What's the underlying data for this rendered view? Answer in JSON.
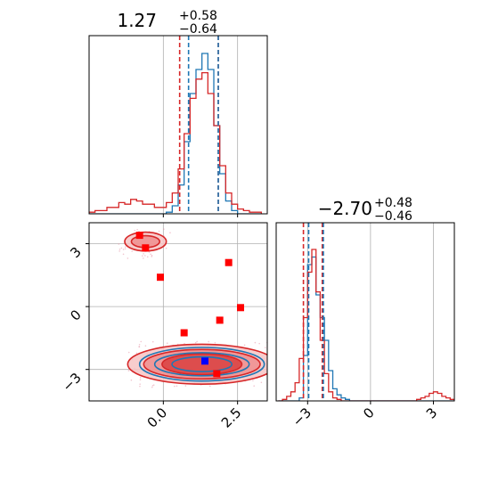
{
  "chart_data": {
    "type": "corner",
    "colors": {
      "series_a": "#d62728",
      "series_b": "#1f77b4",
      "grid": "#b0b0b0",
      "marker_red": "#ff0000",
      "marker_blue": "#0000ff"
    },
    "grid": true,
    "params": [
      {
        "median": "1.27",
        "plus": "+0.58",
        "minus": "−0.64",
        "quantiles_a": [
          0.55,
          1.85
        ],
        "quantiles_b": [
          0.85,
          1.85
        ],
        "range": [
          -2.5,
          3.5
        ],
        "ticks": [
          0.0,
          2.5
        ],
        "tick_labels": [
          "0.0",
          "2.5"
        ]
      },
      {
        "median": "−2.70",
        "plus": "+0.48",
        "minus": "−0.46",
        "quantiles_a": [
          -3.2,
          -2.3
        ],
        "quantiles_b": [
          -2.95,
          -2.25
        ],
        "range": [
          -4.5,
          4.0
        ],
        "ticks": [
          -3,
          0,
          3
        ],
        "tick_labels": [
          "−3",
          "0",
          "3"
        ]
      }
    ],
    "hist1d_x": {
      "bin_centers": [
        -2.4,
        -2.2,
        -2.0,
        -1.8,
        -1.6,
        -1.4,
        -1.2,
        -1.0,
        -0.8,
        -0.6,
        -0.4,
        -0.2,
        0.0,
        0.2,
        0.4,
        0.6,
        0.8,
        1.0,
        1.2,
        1.4,
        1.6,
        1.8,
        2.0,
        2.2,
        2.4,
        2.6,
        2.8,
        3.0,
        3.2
      ],
      "series_b": [
        0,
        0,
        0,
        0,
        0,
        0,
        0,
        0,
        0,
        0,
        0,
        0,
        0,
        0.01,
        0.05,
        0.18,
        0.45,
        0.75,
        0.9,
        1.0,
        0.9,
        0.55,
        0.25,
        0.08,
        0.02,
        0,
        0,
        0,
        0
      ],
      "series_a": [
        0.01,
        0.02,
        0.02,
        0.04,
        0.04,
        0.07,
        0.06,
        0.09,
        0.08,
        0.06,
        0.06,
        0.04,
        0.04,
        0.07,
        0.13,
        0.28,
        0.5,
        0.72,
        0.84,
        0.88,
        0.75,
        0.55,
        0.3,
        0.13,
        0.06,
        0.03,
        0.02,
        0.01,
        0.01
      ]
    },
    "hist1d_y": {
      "bin_centers": [
        -4.3,
        -4.1,
        -3.9,
        -3.7,
        -3.5,
        -3.3,
        -3.1,
        -2.9,
        -2.7,
        -2.5,
        -2.3,
        -2.1,
        -1.9,
        -1.7,
        -1.5,
        -1.3,
        -1.1,
        -0.9,
        -0.7,
        -0.5,
        -0.3,
        -0.1,
        0.1,
        0.3,
        0.5,
        0.7,
        0.9,
        1.1,
        1.3,
        1.5,
        1.7,
        1.9,
        2.1,
        2.3,
        2.5,
        2.7,
        2.9,
        3.1,
        3.3,
        3.5,
        3.7,
        3.9
      ],
      "series_b": [
        0,
        0,
        0,
        0,
        0,
        0.02,
        0.3,
        0.9,
        0.95,
        0.7,
        0.55,
        0.4,
        0.2,
        0.08,
        0.04,
        0.02,
        0.01,
        0,
        0,
        0,
        0,
        0,
        0,
        0,
        0,
        0,
        0,
        0,
        0,
        0,
        0,
        0,
        0,
        0,
        0,
        0,
        0,
        0,
        0,
        0,
        0,
        0
      ],
      "series_a": [
        0,
        0.01,
        0.03,
        0.06,
        0.12,
        0.28,
        0.55,
        0.85,
        1.0,
        0.72,
        0.4,
        0.18,
        0.06,
        0.02,
        0.01,
        0,
        0,
        0,
        0,
        0,
        0,
        0,
        0,
        0,
        0,
        0,
        0,
        0,
        0,
        0,
        0,
        0,
        0,
        0.01,
        0.02,
        0.03,
        0.05,
        0.06,
        0.05,
        0.03,
        0.02,
        0.01
      ]
    },
    "scatter_squares": [
      {
        "x": -0.8,
        "y": 3.4,
        "color": "red"
      },
      {
        "x": -0.6,
        "y": 2.8,
        "color": "red"
      },
      {
        "x": -0.1,
        "y": 1.4,
        "color": "red"
      },
      {
        "x": 2.2,
        "y": 2.1,
        "color": "red"
      },
      {
        "x": 2.6,
        "y": -0.05,
        "color": "red"
      },
      {
        "x": 1.9,
        "y": -0.65,
        "color": "red"
      },
      {
        "x": 0.7,
        "y": -1.25,
        "color": "red"
      },
      {
        "x": 1.8,
        "y": -3.2,
        "color": "red"
      },
      {
        "x": 1.4,
        "y": -2.6,
        "color": "blue"
      }
    ],
    "contour_centers": [
      {
        "x": 1.3,
        "y": -2.75,
        "series": "a",
        "levels": [
          [
            2.5,
            0.95
          ],
          [
            1.85,
            0.7
          ],
          [
            1.2,
            0.5
          ]
        ]
      },
      {
        "x": 1.3,
        "y": -2.75,
        "series": "b",
        "levels": [
          [
            2.1,
            0.8
          ],
          [
            1.5,
            0.55
          ],
          [
            0.9,
            0.35
          ]
        ]
      },
      {
        "x": -0.6,
        "y": 3.1,
        "series": "a",
        "levels": [
          [
            0.7,
            0.45
          ],
          [
            0.45,
            0.28
          ]
        ]
      }
    ]
  }
}
